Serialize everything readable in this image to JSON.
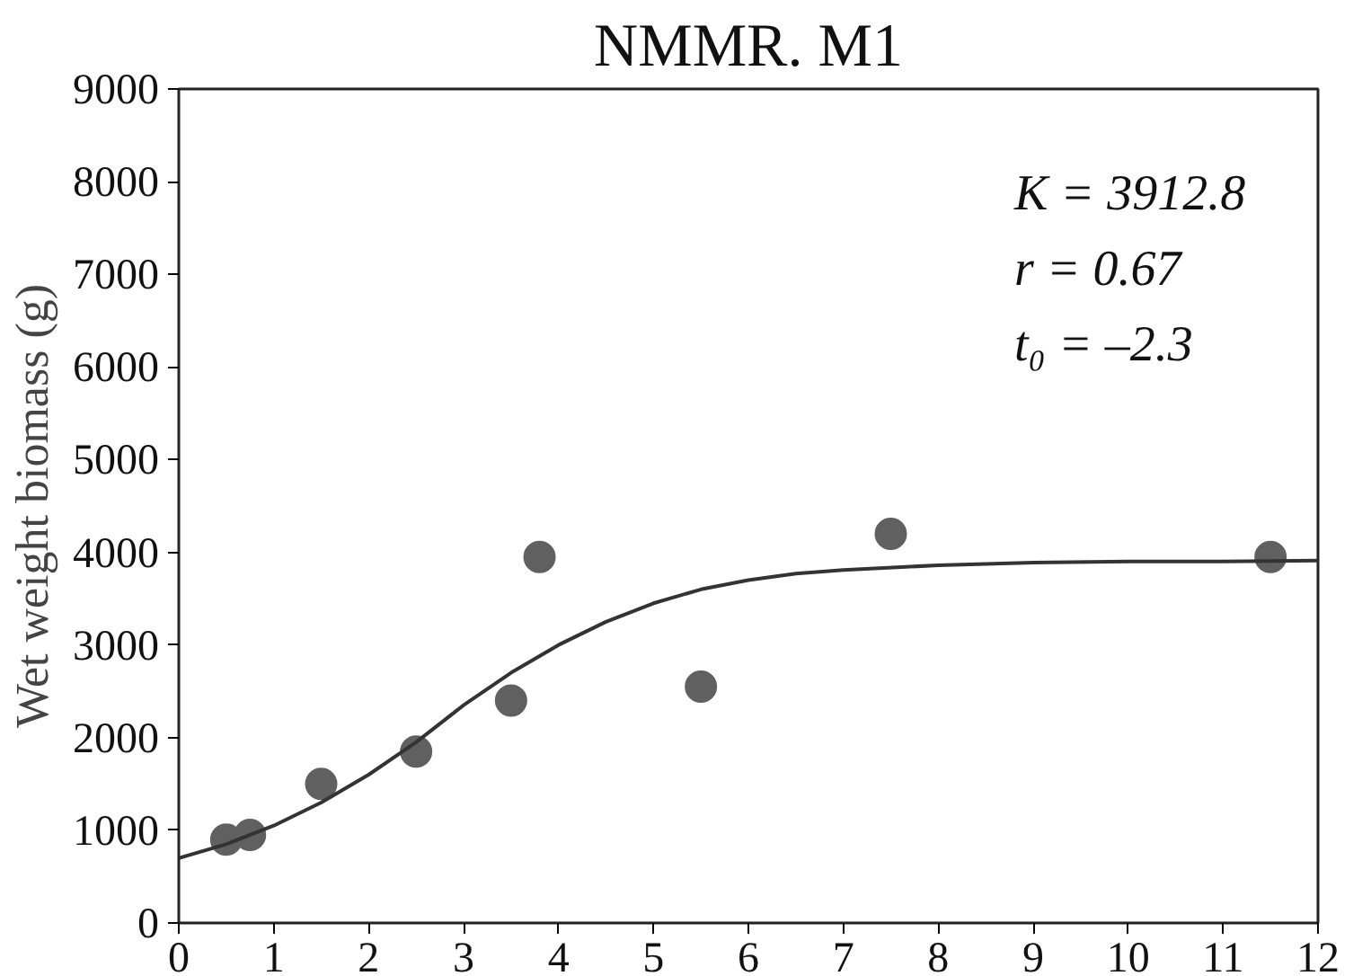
{
  "chart_data": {
    "type": "scatter",
    "title": "NMMR. M1",
    "ylabel": "Wet weight biomass (g)",
    "xlim": [
      0,
      12
    ],
    "xticks": [
      0,
      1,
      2,
      3,
      4,
      5,
      6,
      7,
      8,
      9,
      10,
      11,
      12
    ],
    "ylim": [
      0,
      9000
    ],
    "yticks": [
      0,
      1000,
      2000,
      3000,
      4000,
      5000,
      6000,
      7000,
      8000,
      9000
    ],
    "grid": false,
    "marker": "circle",
    "series": [
      {
        "color": "#606060",
        "x": [
          0.5,
          0.75,
          1.5,
          2.5,
          3.5,
          3.8,
          5.5,
          7.5,
          11.5
        ],
        "values": [
          900,
          950,
          1500,
          1850,
          2400,
          3950,
          2550,
          4200,
          3950
        ]
      },
      {
        "type": "line",
        "marker": "none",
        "color": "#333333",
        "line_style": "solid",
        "x": [
          0,
          0.5,
          1,
          1.5,
          2,
          2.5,
          3,
          3.5,
          4,
          4.5,
          5,
          5.5,
          6,
          6.5,
          7,
          8,
          9,
          10,
          11,
          12
        ],
        "values": [
          700,
          850,
          1050,
          1300,
          1600,
          1950,
          2350,
          2700,
          3000,
          3250,
          3450,
          3600,
          3700,
          3770,
          3810,
          3860,
          3890,
          3900,
          3900,
          3910
        ]
      }
    ],
    "annotations": [
      "K = 3912.8",
      "r = 0.67",
      "t₀ = –2.3"
    ]
  }
}
